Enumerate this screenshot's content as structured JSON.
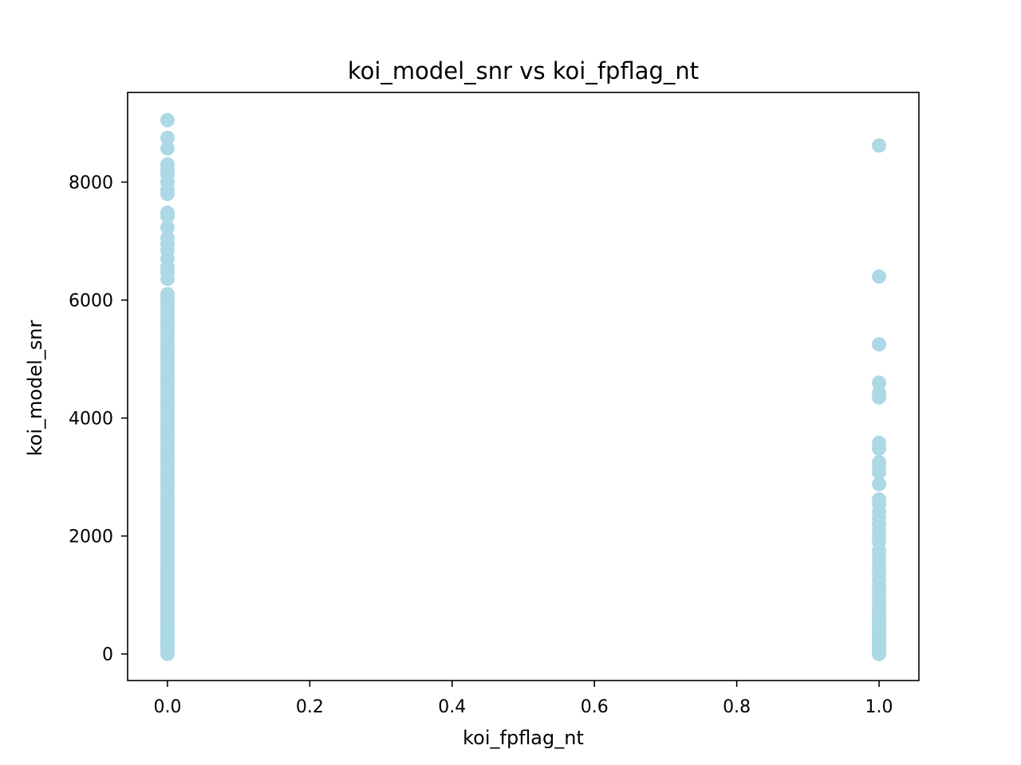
{
  "chart_data": {
    "type": "scatter",
    "title": "koi_model_snr vs koi_fpflag_nt",
    "xlabel": "koi_fpflag_nt",
    "ylabel": "koi_model_snr",
    "xlim": [
      -0.056,
      1.056
    ],
    "ylim": [
      -450,
      9520
    ],
    "xticks": [
      0.0,
      0.2,
      0.4,
      0.6,
      0.8,
      1.0
    ],
    "xtick_labels": [
      "0.0",
      "0.2",
      "0.4",
      "0.6",
      "0.8",
      "1.0"
    ],
    "yticks": [
      0,
      2000,
      4000,
      6000,
      8000
    ],
    "ytick_labels": [
      "0",
      "2000",
      "4000",
      "6000",
      "8000"
    ],
    "marker_color": "#add8e6",
    "series": [
      {
        "name": "koi_fpflag_nt = 0",
        "x": 0.0,
        "y": [
          0,
          20,
          40,
          60,
          80,
          100,
          120,
          140,
          160,
          180,
          200,
          220,
          240,
          260,
          280,
          300,
          320,
          340,
          360,
          380,
          400,
          420,
          440,
          460,
          480,
          500,
          530,
          560,
          590,
          620,
          650,
          680,
          710,
          740,
          770,
          800,
          830,
          860,
          890,
          920,
          950,
          980,
          1010,
          1040,
          1070,
          1100,
          1140,
          1180,
          1220,
          1260,
          1300,
          1340,
          1380,
          1420,
          1460,
          1500,
          1550,
          1600,
          1650,
          1700,
          1750,
          1800,
          1850,
          1900,
          1950,
          2000,
          2060,
          2120,
          2180,
          2240,
          2300,
          2360,
          2420,
          2480,
          2540,
          2600,
          2680,
          2760,
          2840,
          2920,
          3000,
          3080,
          3160,
          3240,
          3320,
          3400,
          3480,
          3560,
          3640,
          3720,
          3800,
          3880,
          3960,
          4040,
          4120,
          4200,
          4280,
          4360,
          4440,
          4520,
          4600,
          4680,
          4760,
          4840,
          4920,
          5000,
          5080,
          5160,
          5240,
          5320,
          5400,
          5480,
          5560,
          5640,
          5720,
          5800,
          5880,
          5960,
          6040,
          6100,
          6360,
          6480,
          6560,
          6700,
          6840,
          6950,
          7050,
          7230,
          7420,
          7480,
          7800,
          7870,
          8000,
          8130,
          8200,
          8300,
          8570,
          8750,
          9050
        ]
      },
      {
        "name": "koi_fpflag_nt = 1",
        "x": 1.0,
        "y": [
          0,
          30,
          60,
          90,
          120,
          150,
          180,
          210,
          240,
          280,
          320,
          360,
          400,
          450,
          500,
          560,
          620,
          680,
          750,
          820,
          900,
          980,
          1060,
          1150,
          1250,
          1350,
          1450,
          1550,
          1650,
          1750,
          1900,
          2000,
          2080,
          2200,
          2300,
          2420,
          2550,
          2620,
          2880,
          3080,
          3150,
          3250,
          3480,
          3580,
          4350,
          4430,
          4600,
          5250,
          6400,
          8620
        ]
      }
    ]
  }
}
